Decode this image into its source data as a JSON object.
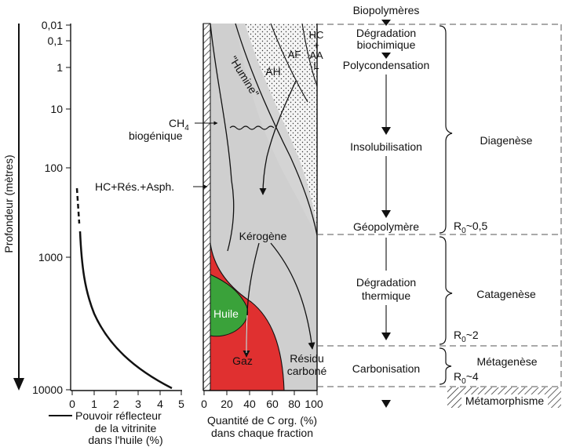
{
  "depth_axis": {
    "label": "Profondeur (mètres)",
    "ticks": [
      "0,01",
      "0,1",
      "1",
      "10",
      "100",
      "1000",
      "10000"
    ]
  },
  "vitrinite_axis": {
    "ticks": [
      "0",
      "1",
      "2",
      "3",
      "4",
      "5"
    ],
    "legend_line1": "Pouvoir réflecteur",
    "legend_line2": "de la vitrinite",
    "legend_line3": "dans l'huile (%)"
  },
  "fraction_axis": {
    "ticks": [
      "0",
      "20",
      "40",
      "60",
      "80",
      "100"
    ],
    "label_line1": "Quantité de C org. (%)",
    "label_line2": "dans chaque fraction"
  },
  "fraction_labels": {
    "humine": "\"Humine\"",
    "ah": "AH",
    "af": "AF",
    "hc": "HC",
    "plus": "+",
    "aa": "AA",
    "l": "L",
    "kerogene": "Kérogène",
    "huile": "Huile",
    "gaz": "Gaz",
    "residu1": "Résidu",
    "residu2": "carboné"
  },
  "side_labels": {
    "ch4_main": "CH",
    "ch4_sub": "4",
    "biogenique": "biogénique",
    "hc_res": "HC+Rés.+Asph."
  },
  "process_steps": {
    "biopolymeres": "Biopolymères",
    "degradation1": "Dégradation",
    "degradation2": "biochimique",
    "polycondensation": "Polycondensation",
    "insolubilisation": "Insolubilisation",
    "geopolymere": "Géopolymère",
    "deg_thermique1": "Dégradation",
    "deg_thermique2": "thermique",
    "carbonisation": "Carbonisation"
  },
  "stages": {
    "diagenese": "Diagenèse",
    "catagenese": "Catagenèse",
    "metagenese": "Métagenèse",
    "metamorphisme": "Métamorphisme"
  },
  "r0_labels": {
    "r_main": "R",
    "r_sub": "0",
    "r1": "~0,5",
    "r2": "~2",
    "r3": "~4"
  },
  "colors": {
    "kerogen_grey": "#cfcfcf",
    "oil_green": "#3aa23a",
    "gas_red": "#e03030",
    "dots_bg": "#f2f2f2"
  }
}
